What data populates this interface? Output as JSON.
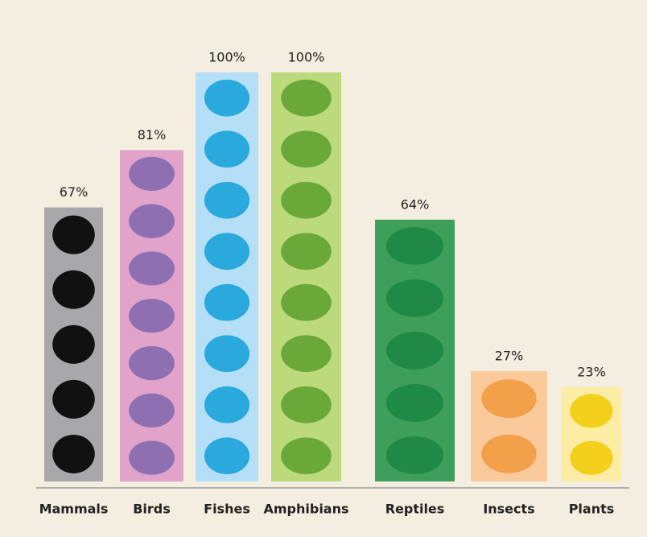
{
  "chart_data": {
    "type": "bar",
    "categories": [
      "Mammals",
      "Birds",
      "Fishes",
      "Amphibians",
      "Reptiles",
      "Insects",
      "Plants"
    ],
    "values": [
      67,
      81,
      100,
      100,
      64,
      27,
      23
    ],
    "value_labels": [
      "67%",
      "81%",
      "100%",
      "100%",
      "64%",
      "27%",
      "23%"
    ],
    "colors": [
      "#a8a8aa",
      "#e2a3cb",
      "#b5dff6",
      "#bcd97c",
      "#3e9f5a",
      "#fbca9c",
      "#fdeca4"
    ],
    "icon_colors": [
      "#111111",
      "#8e6fb2",
      "#2aa9dc",
      "#6aa83a",
      "#1f8a45",
      "#f2a04a",
      "#f2d01c"
    ]
  }
}
